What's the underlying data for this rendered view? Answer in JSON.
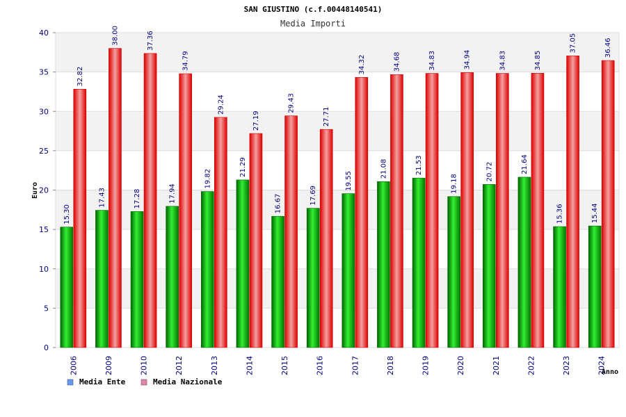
{
  "chart_data": {
    "type": "bar",
    "title": "SAN GIUSTINO (c.f.00448140541)",
    "subtitle": "Media Importi",
    "xlabel": "Anno",
    "ylabel": "Euro",
    "ylim": [
      0,
      40
    ],
    "yticks": [
      0,
      5,
      10,
      15,
      20,
      25,
      30,
      35,
      40
    ],
    "grid": true,
    "legend_position": "bottom-left",
    "categories": [
      "2006",
      "2009",
      "2010",
      "2012",
      "2013",
      "2014",
      "2015",
      "2016",
      "2017",
      "2018",
      "2019",
      "2020",
      "2021",
      "2022",
      "2023",
      "2024"
    ],
    "series": [
      {
        "name": "Media Ente",
        "color": "#00aa00",
        "legend_color": "#6699ee",
        "values": [
          15.3,
          17.43,
          17.28,
          17.94,
          19.82,
          21.29,
          16.67,
          17.69,
          19.55,
          21.08,
          21.53,
          19.18,
          20.72,
          21.64,
          15.36,
          15.44
        ],
        "labels": [
          "15.30",
          "17.43",
          "17.28",
          "17.94",
          "19.82",
          "21.29",
          "16.67",
          "17.69",
          "19.55",
          "21.08",
          "21.53",
          "19.18",
          "20.72",
          "21.64",
          "15.36",
          "15.44"
        ]
      },
      {
        "name": "Media Nazionale",
        "color": "#ee0000",
        "legend_color": "#dd88aa",
        "values": [
          32.82,
          38.0,
          37.36,
          34.79,
          29.24,
          27.19,
          29.43,
          27.71,
          34.32,
          34.68,
          34.83,
          34.94,
          34.83,
          34.85,
          37.05,
          36.46
        ],
        "labels": [
          "32.82",
          "38.00",
          "37.36",
          "34.79",
          "29.24",
          "27.19",
          "29.43",
          "27.71",
          "34.32",
          "34.68",
          "34.83",
          "34.94",
          "34.83",
          "34.85",
          "37.05",
          "36.46"
        ]
      }
    ]
  }
}
